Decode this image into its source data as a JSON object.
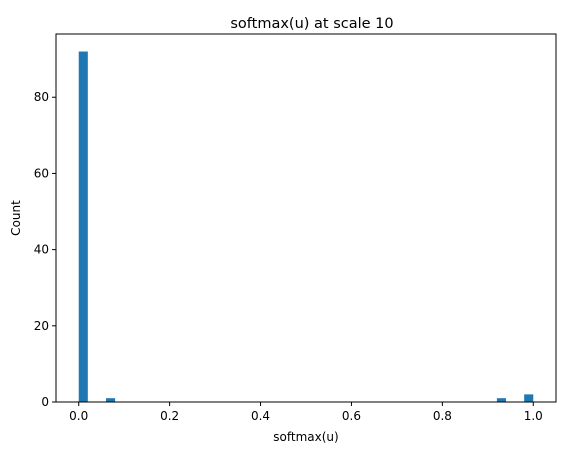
{
  "chart_data": {
    "type": "bar",
    "title": "softmax(u) at scale 10",
    "xlabel": "softmax(u)",
    "ylabel": "Count",
    "xlim": [
      -0.05,
      1.05
    ],
    "ylim": [
      0,
      96.6
    ],
    "xticks": [
      0.0,
      0.2,
      0.4,
      0.6,
      0.8,
      1.0
    ],
    "xtick_labels": [
      "0.0",
      "0.2",
      "0.4",
      "0.6",
      "0.8",
      "1.0"
    ],
    "yticks": [
      0,
      20,
      40,
      60,
      80
    ],
    "ytick_labels": [
      "0",
      "20",
      "40",
      "60",
      "80"
    ],
    "bin_width": 0.02,
    "bins": [
      {
        "x0": 0.0,
        "count": 92
      },
      {
        "x0": 0.06,
        "count": 1
      },
      {
        "x0": 0.92,
        "count": 1
      },
      {
        "x0": 0.98,
        "count": 2
      }
    ],
    "grid": false,
    "colors": {
      "bar": "#1f77b4"
    }
  }
}
